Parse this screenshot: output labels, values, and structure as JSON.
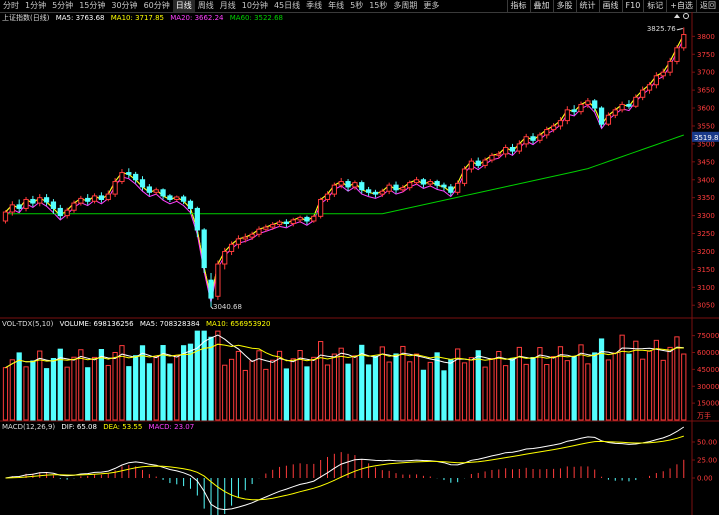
{
  "toolbar": {
    "periods": [
      "分时",
      "1分钟",
      "5分钟",
      "15分钟",
      "30分钟",
      "60分钟",
      "日线",
      "周线",
      "月线",
      "10分钟",
      "45日线",
      "季线",
      "年线",
      "5秒",
      "15秒",
      "多周期",
      "更多"
    ],
    "active_period": "日线",
    "buttons": [
      "指标",
      "叠加",
      "多股",
      "统计",
      "画线",
      "F10",
      "标记",
      "+自选",
      "返回"
    ]
  },
  "main_legend": {
    "title": "上证指数(日线)",
    "ma5": "MA5: 3763.68",
    "ma10": "MA10: 3717.85",
    "ma20": "MA20: 3662.24",
    "ma60": "MA60: 3522.68"
  },
  "vol_legend": {
    "title": "VOL-TDX(5,10)",
    "volume": "VOLUME: 698136256",
    "ma5": "MA5: 708328384",
    "ma10": "MA10: 656953920"
  },
  "macd_legend": {
    "title": "MACD(12,26,9)",
    "dif": "DIF: 65.08",
    "dea": "DEA: 53.55",
    "macd": "MACD: 23.07"
  },
  "annotations": {
    "high_label": "3825.76",
    "low_label": "3040.68",
    "current_price": "3519.8",
    "vol_unit": "万手"
  },
  "price_axis": [
    "3800",
    "3750",
    "3700",
    "3650",
    "3600",
    "3550",
    "3500",
    "3450",
    "3400",
    "3350",
    "3300",
    "3250",
    "3200",
    "3150",
    "3100",
    "3050"
  ],
  "vol_axis": [
    "75000",
    "60000",
    "45000",
    "30000",
    "15000"
  ],
  "macd_axis": [
    "50.00",
    "25.00",
    "0.00"
  ],
  "colors": {
    "up": "#ff3c3c",
    "down": "#54ffff",
    "ma5": "#ffffff",
    "ma10": "#ffff00",
    "ma20": "#ff40ff",
    "ma60": "#00d000",
    "grid_red": "#7a1010"
  },
  "chart_data": {
    "type": "candlestick",
    "ylim": [
      3020,
      3840
    ],
    "candles": [
      [
        3285,
        3310,
        3278,
        3315
      ],
      [
        3310,
        3330,
        3300,
        3340
      ],
      [
        3330,
        3320,
        3310,
        3345
      ],
      [
        3320,
        3345,
        3312,
        3352
      ],
      [
        3345,
        3335,
        3325,
        3355
      ],
      [
        3335,
        3350,
        3326,
        3360
      ],
      [
        3350,
        3338,
        3328,
        3360
      ],
      [
        3338,
        3320,
        3305,
        3346
      ],
      [
        3320,
        3300,
        3290,
        3330
      ],
      [
        3300,
        3315,
        3292,
        3322
      ],
      [
        3315,
        3335,
        3308,
        3342
      ],
      [
        3335,
        3348,
        3328,
        3355
      ],
      [
        3348,
        3340,
        3330,
        3360
      ],
      [
        3340,
        3355,
        3334,
        3362
      ],
      [
        3355,
        3345,
        3336,
        3365
      ],
      [
        3345,
        3360,
        3340,
        3370
      ],
      [
        3360,
        3395,
        3352,
        3405
      ],
      [
        3395,
        3420,
        3388,
        3430
      ],
      [
        3420,
        3415,
        3405,
        3432
      ],
      [
        3415,
        3400,
        3390,
        3422
      ],
      [
        3400,
        3380,
        3370,
        3410
      ],
      [
        3380,
        3365,
        3355,
        3388
      ],
      [
        3365,
        3372,
        3358,
        3378
      ],
      [
        3372,
        3355,
        3345,
        3376
      ],
      [
        3355,
        3345,
        3338,
        3360
      ],
      [
        3345,
        3352,
        3340,
        3356
      ],
      [
        3352,
        3340,
        3332,
        3358
      ],
      [
        3340,
        3320,
        3305,
        3345
      ],
      [
        3320,
        3260,
        3240,
        3325
      ],
      [
        3260,
        3155,
        3140,
        3265
      ],
      [
        3120,
        3070,
        3045,
        3140
      ],
      [
        3075,
        3165,
        3065,
        3175
      ],
      [
        3165,
        3200,
        3150,
        3210
      ],
      [
        3200,
        3220,
        3190,
        3228
      ],
      [
        3220,
        3235,
        3208,
        3245
      ],
      [
        3235,
        3240,
        3225,
        3250
      ],
      [
        3240,
        3248,
        3232,
        3255
      ],
      [
        3248,
        3262,
        3240,
        3270
      ],
      [
        3262,
        3268,
        3255,
        3275
      ],
      [
        3268,
        3275,
        3260,
        3282
      ],
      [
        3275,
        3282,
        3268,
        3288
      ],
      [
        3282,
        3278,
        3268,
        3290
      ],
      [
        3278,
        3288,
        3270,
        3294
      ],
      [
        3288,
        3295,
        3280,
        3300
      ],
      [
        3295,
        3285,
        3275,
        3300
      ],
      [
        3285,
        3298,
        3280,
        3302
      ],
      [
        3298,
        3345,
        3292,
        3350
      ],
      [
        3345,
        3360,
        3338,
        3368
      ],
      [
        3360,
        3385,
        3352,
        3392
      ],
      [
        3385,
        3395,
        3376,
        3405
      ],
      [
        3395,
        3380,
        3368,
        3402
      ],
      [
        3380,
        3392,
        3372,
        3398
      ],
      [
        3392,
        3372,
        3362,
        3398
      ],
      [
        3372,
        3365,
        3355,
        3380
      ],
      [
        3365,
        3360,
        3350,
        3372
      ],
      [
        3360,
        3368,
        3352,
        3375
      ],
      [
        3368,
        3385,
        3360,
        3392
      ],
      [
        3385,
        3372,
        3362,
        3395
      ],
      [
        3372,
        3378,
        3365,
        3385
      ],
      [
        3378,
        3392,
        3370,
        3398
      ],
      [
        3392,
        3400,
        3385,
        3408
      ],
      [
        3400,
        3388,
        3378,
        3405
      ],
      [
        3388,
        3395,
        3380,
        3402
      ],
      [
        3395,
        3385,
        3375,
        3400
      ],
      [
        3385,
        3380,
        3370,
        3392
      ],
      [
        3380,
        3365,
        3355,
        3388
      ],
      [
        3365,
        3390,
        3358,
        3398
      ],
      [
        3390,
        3430,
        3382,
        3438
      ],
      [
        3430,
        3452,
        3420,
        3460
      ],
      [
        3452,
        3440,
        3432,
        3462
      ],
      [
        3440,
        3455,
        3432,
        3462
      ],
      [
        3455,
        3468,
        3448,
        3475
      ],
      [
        3468,
        3472,
        3460,
        3480
      ],
      [
        3472,
        3490,
        3462,
        3498
      ],
      [
        3490,
        3480,
        3470,
        3500
      ],
      [
        3480,
        3500,
        3472,
        3510
      ],
      [
        3500,
        3520,
        3490,
        3528
      ],
      [
        3520,
        3510,
        3500,
        3530
      ],
      [
        3510,
        3525,
        3502,
        3532
      ],
      [
        3525,
        3540,
        3515,
        3548
      ],
      [
        3540,
        3550,
        3532,
        3558
      ],
      [
        3550,
        3565,
        3540,
        3575
      ],
      [
        3565,
        3595,
        3555,
        3605
      ],
      [
        3595,
        3590,
        3580,
        3608
      ],
      [
        3590,
        3610,
        3582,
        3618
      ],
      [
        3610,
        3620,
        3600,
        3628
      ],
      [
        3620,
        3600,
        3590,
        3625
      ],
      [
        3600,
        3555,
        3545,
        3605
      ],
      [
        3555,
        3580,
        3550,
        3588
      ],
      [
        3580,
        3595,
        3572,
        3602
      ],
      [
        3595,
        3610,
        3588,
        3618
      ],
      [
        3610,
        3605,
        3598,
        3622
      ],
      [
        3605,
        3630,
        3600,
        3638
      ],
      [
        3630,
        3650,
        3622,
        3660
      ],
      [
        3650,
        3665,
        3640,
        3672
      ],
      [
        3665,
        3690,
        3655,
        3700
      ],
      [
        3690,
        3700,
        3680,
        3710
      ],
      [
        3700,
        3730,
        3690,
        3740
      ],
      [
        3730,
        3768,
        3722,
        3775
      ],
      [
        3768,
        3805,
        3760,
        3825
      ]
    ]
  }
}
